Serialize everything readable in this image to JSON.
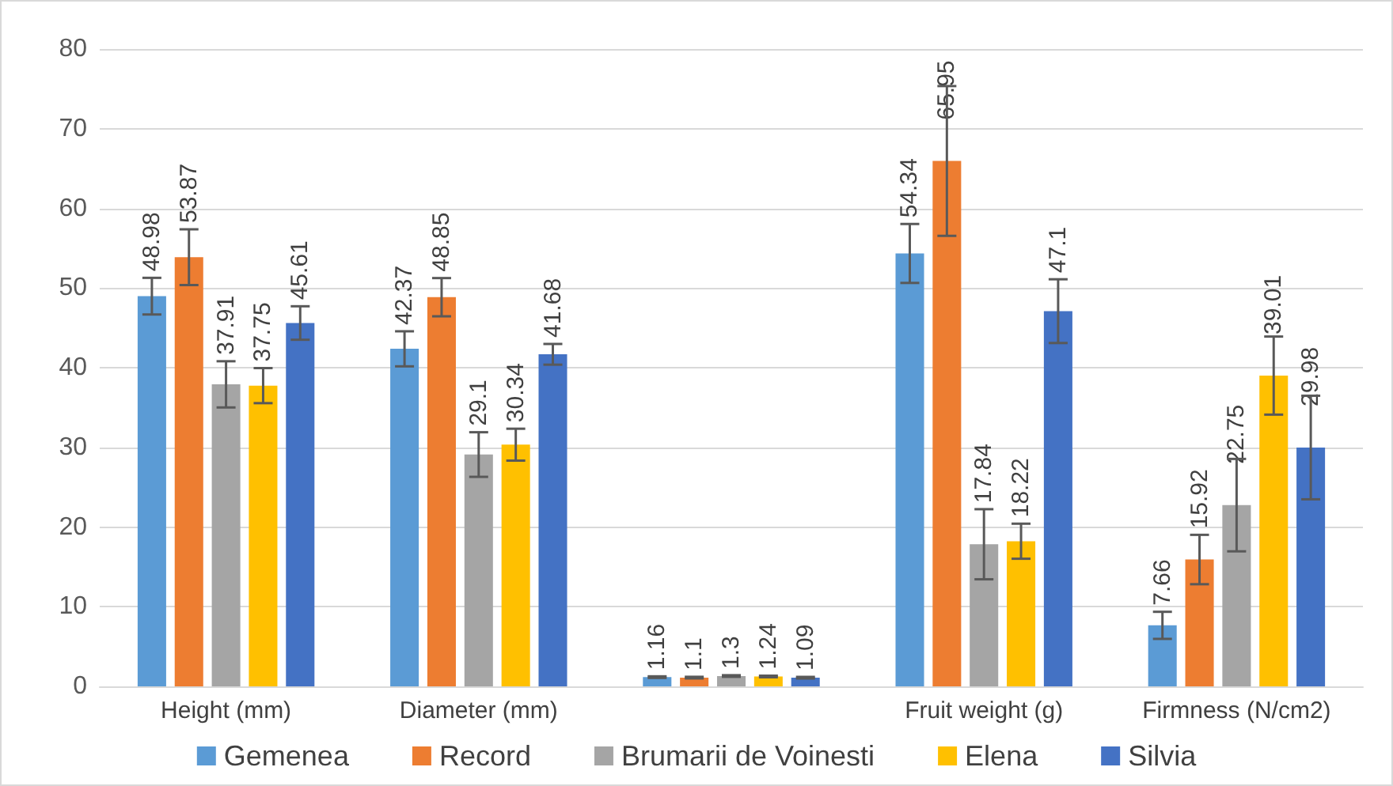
{
  "chart_data": {
    "type": "bar",
    "categories": [
      "Height (mm)",
      "Diameter (mm)",
      null,
      "Fruit weight (g)",
      "Firmness (N/cm2)"
    ],
    "series": [
      {
        "name": "Gemenea",
        "color": "#5b9bd5",
        "values": [
          48.98,
          42.37,
          1.16,
          54.34,
          7.66
        ],
        "errors": [
          2.3,
          2.2,
          0.1,
          3.7,
          1.7
        ]
      },
      {
        "name": "Record",
        "color": "#ed7d31",
        "values": [
          53.87,
          48.85,
          1.1,
          65.95,
          15.92
        ],
        "errors": [
          3.5,
          2.4,
          0.1,
          9.4,
          3.1
        ]
      },
      {
        "name": "Brumarii de Voinesti",
        "color": "#a5a5a5",
        "values": [
          37.91,
          29.1,
          1.3,
          17.84,
          22.75
        ],
        "errors": [
          2.9,
          2.8,
          0.1,
          4.4,
          5.8
        ]
      },
      {
        "name": "Elena",
        "color": "#ffc000",
        "values": [
          37.75,
          30.34,
          1.24,
          18.22,
          39.01
        ],
        "errors": [
          2.2,
          2,
          0.1,
          2.2,
          4.9
        ]
      },
      {
        "name": "Silvia",
        "color": "#4472c4",
        "values": [
          45.61,
          41.68,
          1.09,
          47.1,
          29.98
        ],
        "errors": [
          2.1,
          1.3,
          0.1,
          4,
          6.5
        ]
      }
    ],
    "ylim": [
      0,
      80
    ],
    "yticks": [
      0,
      10,
      20,
      30,
      40,
      50,
      60,
      70,
      80
    ],
    "grid": "y",
    "legend": "bottom",
    "data_labels": true
  }
}
